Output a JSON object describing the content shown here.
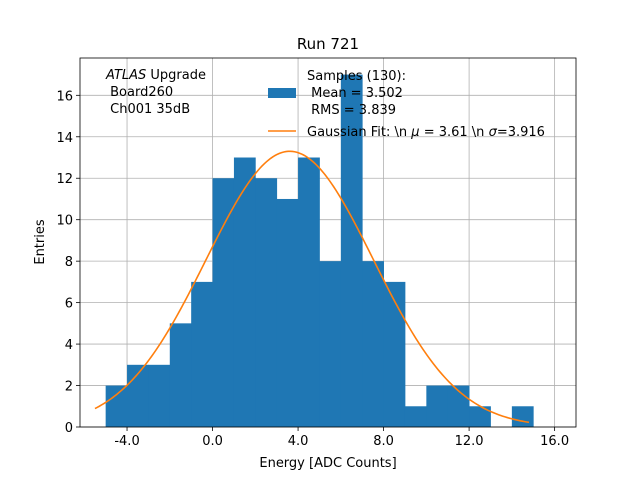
{
  "chart_data": {
    "type": "bar",
    "title": "Run 721",
    "xlabel": "Energy [ADC Counts]",
    "ylabel": "Entries",
    "xlim": [
      -6.2,
      17.0
    ],
    "ylim": [
      0,
      17.8
    ],
    "x_ticks": [
      -4,
      0,
      4,
      8,
      12,
      16
    ],
    "x_tick_labels": [
      "-4.0",
      "0.0",
      "4.0",
      "8.0",
      "12.0",
      "16.0"
    ],
    "y_ticks": [
      0,
      2,
      4,
      6,
      8,
      10,
      12,
      14,
      16
    ],
    "y_tick_labels": [
      "0",
      "2",
      "4",
      "6",
      "8",
      "10",
      "12",
      "14",
      "16"
    ],
    "grid": true,
    "histogram": {
      "name": "Samples (130):\n Mean = 3.502\n RMS = 3.839",
      "color": "#1f77b4",
      "bin_edges": [
        -5.0,
        -4.0,
        -3.0,
        -2.0,
        -1.0,
        0.0,
        1.0,
        2.0,
        3.0,
        4.0,
        5.0,
        6.0,
        7.0,
        8.0,
        9.0,
        10.0,
        11.0,
        12.0,
        13.0,
        14.0,
        15.0
      ],
      "counts": [
        2,
        3,
        3,
        5,
        7,
        12,
        13,
        12,
        11,
        13,
        8,
        17,
        8,
        7,
        1,
        2,
        2,
        1,
        0,
        1
      ]
    },
    "fit": {
      "name": "Gaussian Fit: \\n $\\mu$ = 3.61 \\n $\\sigma$=3.916",
      "color": "#ff7f0e",
      "mu": 3.61,
      "sigma": 3.916,
      "amplitude": 13.3,
      "x_range": [
        -5.5,
        14.8
      ]
    },
    "legend": {
      "placement": "top-center",
      "entries": [
        {
          "label_lines": [
            "Samples (130):",
            " Mean = 3.502",
            " RMS = 3.839"
          ]
        },
        {
          "label_pre": "Gaussian Fit: \\n ",
          "mu_symbol": "μ",
          "label_mid": " = 3.61 \\n ",
          "sigma_symbol": "σ",
          "label_post": "=3.916"
        }
      ]
    },
    "annotation": {
      "placement": "top-left",
      "line1_italic": "ATLAS",
      "line1_rest": " Upgrade",
      "line2": " Board260",
      "line3": " Ch001 35dB"
    }
  }
}
